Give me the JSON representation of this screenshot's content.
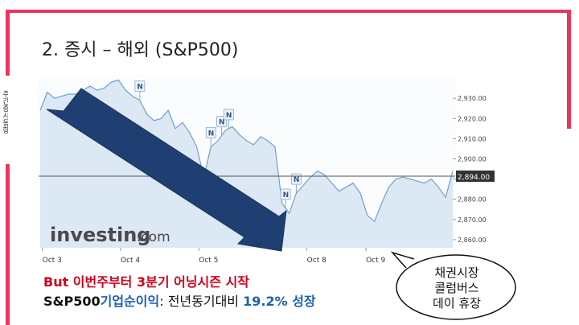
{
  "side_label": "주간증시동향",
  "slide_title": "2. 증시 – 해외 (S&P500)",
  "watermark": {
    "text": "investing",
    "suffix": ".com"
  },
  "caption1": "But 이번주부터 3분기 어닝시즌 시작",
  "caption2": {
    "part1": "S&P500",
    "part2": "기업순이익",
    "part3": ": 전년동기대비 ",
    "part4": "19.2% 성장"
  },
  "bubble": [
    "채권시장",
    "콜럼버스",
    "데이 휴장"
  ],
  "colors": {
    "accent_frame": "#e8375e",
    "line": "#6fa0cf",
    "area": "#dce8f4",
    "arrow_fill": "#1f3f73",
    "caption_red": "#d0021b",
    "caption_blue": "#1b62b0"
  },
  "chart_data": {
    "type": "area",
    "title": "",
    "xlabel": "",
    "ylabel": "",
    "ylim": [
      2856,
      2942
    ],
    "y_ticks": [
      "2,930.00",
      "2,920.00",
      "2,910.00",
      "2,900.00",
      "2,890.00",
      "2,880.00",
      "2,870.00",
      "2,860.00"
    ],
    "y_tick_values": [
      2930,
      2920,
      2910,
      2900,
      2890,
      2880,
      2870,
      2860
    ],
    "x_ticks": [
      {
        "label": "Oct 3",
        "t": 0.3
      },
      {
        "label": "Oct 4",
        "t": 11.3
      },
      {
        "label": "Oct 5",
        "t": 22.3
      },
      {
        "label": "Oct 8",
        "t": 37.5
      },
      {
        "label": "Oct 9",
        "t": 45.8
      }
    ],
    "current_value": 2894.0,
    "current_label": "2,894.00",
    "series": [
      {
        "t": [
          0,
          1,
          2,
          3,
          4,
          5,
          6,
          7,
          8,
          9,
          10,
          11,
          12,
          13,
          14,
          15,
          16,
          17,
          18,
          19,
          20,
          21,
          22,
          23,
          24,
          25,
          26,
          27,
          28,
          29,
          30,
          31,
          32,
          33,
          34,
          35,
          36,
          37,
          38,
          39,
          40,
          41,
          42,
          43,
          44,
          45,
          46,
          47,
          48,
          49,
          50,
          51,
          52,
          53,
          54,
          55,
          56,
          57,
          58
        ],
        "values": [
          2924,
          2933,
          2930,
          2931,
          2932,
          2932,
          2934,
          2936,
          2934,
          2935,
          2938,
          2939,
          2934,
          2931,
          2929,
          2922,
          2919,
          2920,
          2924,
          2915,
          2918,
          2913,
          2906,
          2891,
          2906,
          2909,
          2914,
          2916,
          2912,
          2909,
          2907,
          2911,
          2909,
          2906,
          2878,
          2873,
          2883,
          2887,
          2891,
          2894,
          2892,
          2888,
          2884,
          2886,
          2888,
          2883,
          2872,
          2869,
          2878,
          2886,
          2890,
          2891,
          2890,
          2889,
          2888,
          2890,
          2886,
          2881,
          2894
        ]
      }
    ],
    "event_markers": [
      {
        "label": "N",
        "t": 14
      },
      {
        "label": "N",
        "t": 24
      },
      {
        "label": "N",
        "t": 25.5
      },
      {
        "label": "N",
        "t": 26.5
      },
      {
        "label": "N",
        "t": 34.5
      },
      {
        "label": "N",
        "t": 36
      }
    ]
  }
}
